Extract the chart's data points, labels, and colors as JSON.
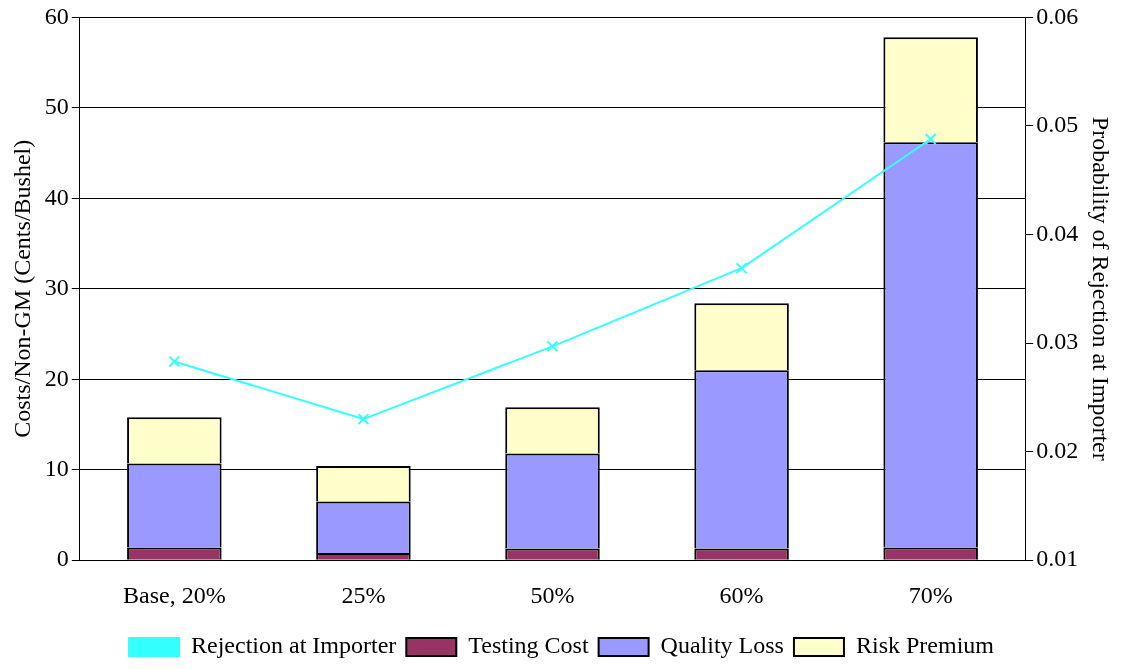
{
  "chart_data": {
    "type": "bar",
    "stacked": true,
    "ylabel": "Costs/Non-GM (Cents/Bushel)",
    "y2label": "Probability of Rejection at Importer",
    "categories": [
      "Base, 20%",
      "25%",
      "50%",
      "60%",
      "70%"
    ],
    "series": [
      {
        "name": "Testing Cost",
        "color": "#993366",
        "values": [
          1.4,
          0.8,
          1.3,
          1.3,
          1.4
        ]
      },
      {
        "name": "Quality Loss",
        "color": "#9999ff",
        "values": [
          9.3,
          5.7,
          10.5,
          19.7,
          44.8
        ]
      },
      {
        "name": "Risk Premium",
        "color": "#ffffcc",
        "values": [
          5.1,
          3.9,
          5.1,
          7.4,
          11.6
        ]
      },
      {
        "name": "Rejection at Importer",
        "type": "line",
        "axis": "y2",
        "color": "#33ffff",
        "marker": "cross",
        "values": [
          0.0283,
          0.023,
          0.0297,
          0.0369,
          0.0488
        ]
      }
    ],
    "ylim": [
      0,
      60
    ],
    "yticks": [
      0,
      10,
      20,
      30,
      40,
      50,
      60
    ],
    "y2lim": [
      0.01,
      0.06
    ],
    "y2ticks": [
      {
        "value": 0.01,
        "label": "0.01"
      },
      {
        "value": 0.02,
        "label": "0.02"
      },
      {
        "value": 0.03,
        "label": "0.03"
      },
      {
        "value": 0.04,
        "label": "0.04"
      },
      {
        "value": 0.05,
        "label": "0.05"
      },
      {
        "value": 0.06,
        "label": "0.06"
      }
    ],
    "grid": "y",
    "legend": "bottom"
  }
}
